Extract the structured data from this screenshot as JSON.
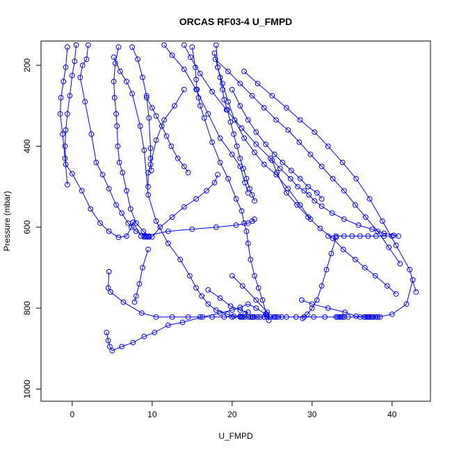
{
  "chart_data": {
    "type": "line",
    "title": "ORCAS RF03-4 U_FMPD",
    "xlabel": "U_FMPD",
    "ylabel": "Pressure (mbar)",
    "xlim": [
      -3.9,
      44.8
    ],
    "ylim": [
      1030,
      140
    ],
    "y_reversed": true,
    "xticks": [
      0,
      10,
      20,
      30,
      40
    ],
    "yticks": [
      200,
      400,
      600,
      800,
      1000
    ],
    "grid": false,
    "legend": "none",
    "series_color": "#0000ff",
    "series": [
      {
        "x": [
          -0.6,
          -0.8,
          -1.1,
          -1.4,
          -1.5,
          -1.2,
          -0.9,
          -0.6
        ],
        "y": [
          155,
          205,
          240,
          280,
          320,
          370,
          430,
          495
        ]
      },
      {
        "x": [
          0.5,
          0.3,
          0.0,
          -0.3,
          -0.6,
          -0.8,
          -0.9,
          -0.8,
          0.0,
          1.2,
          2.3,
          3.5,
          4.6,
          5.8,
          6.8,
          7.4,
          7.6,
          8.6
        ],
        "y": [
          150,
          190,
          225,
          275,
          320,
          360,
          400,
          445,
          468,
          510,
          555,
          590,
          610,
          625,
          622,
          600,
          588,
          622
        ]
      },
      {
        "x": [
          2.0,
          1.8,
          1.3,
          1.0,
          1.6,
          2.4,
          3.0,
          3.8,
          4.6,
          5.5,
          6.2,
          7.0,
          8.0,
          9.2
        ],
        "y": [
          150,
          185,
          200,
          230,
          290,
          370,
          440,
          470,
          505,
          545,
          565,
          590,
          610,
          622
        ]
      },
      {
        "x": [
          5.8,
          5.4,
          5.2,
          5.3,
          5.5,
          5.6,
          5.7,
          5.9,
          6.3,
          6.8,
          7.3,
          8.0,
          8.9,
          9.6
        ],
        "y": [
          155,
          195,
          240,
          280,
          320,
          350,
          400,
          440,
          465,
          510,
          555,
          590,
          610,
          622
        ]
      },
      {
        "x": [
          9.3,
          10.0,
          10.5,
          11.2,
          11.8,
          12.4,
          13.2,
          14.0,
          14.5
        ],
        "y": [
          280,
          305,
          325,
          350,
          375,
          400,
          430,
          450,
          465
        ]
      },
      {
        "x": [
          7.5,
          8.2,
          8.8,
          9.3,
          9.6,
          9.8,
          9.8,
          9.9
        ],
        "y": [
          155,
          185,
          230,
          275,
          330,
          405,
          430,
          460
        ]
      },
      {
        "x": [
          14.0,
          12.8,
          11.5,
          10.5,
          9.8,
          9.5,
          9.5
        ],
        "y": [
          260,
          300,
          335,
          385,
          445,
          465,
          500
        ]
      },
      {
        "x": [
          5.2,
          6.0,
          6.8,
          7.5,
          8.5,
          9.0,
          9.5,
          10.5,
          12.0,
          13.5,
          14.7,
          15.5,
          16.2,
          17.0,
          18.0,
          19.4,
          20.2,
          21.0,
          21.6,
          22.0,
          21.0,
          19.8,
          18.5,
          17.0
        ],
        "y": [
          180,
          215,
          240,
          270,
          350,
          410,
          520,
          585,
          640,
          680,
          720,
          750,
          770,
          790,
          805,
          815,
          820,
          820,
          815,
          810,
          805,
          795,
          775,
          755
        ]
      },
      {
        "x": [
          4.3,
          4.5,
          4.7,
          5.0,
          6.2,
          7.6,
          9.0,
          10.3,
          12.0,
          13.8,
          16.3,
          18.5,
          20.0,
          21.0,
          22.0,
          23.0,
          24.2,
          24.6,
          24.4,
          23.0,
          21.3,
          20.0
        ],
        "y": [
          860,
          880,
          895,
          905,
          895,
          885,
          870,
          860,
          842,
          835,
          822,
          812,
          805,
          798,
          790,
          800,
          815,
          830,
          810,
          780,
          745,
          720
        ]
      },
      {
        "x": [
          9.5,
          8.8,
          8.4,
          8.0,
          7.8
        ],
        "y": [
          655,
          700,
          740,
          770,
          785
        ]
      },
      {
        "x": [
          4.6,
          4.5,
          4.8,
          6.4,
          8.7,
          10.5,
          12.5,
          14.5,
          16.0,
          17.5,
          19.0,
          20.0,
          21.2,
          22.6,
          24.0,
          25.3,
          26.8,
          28.0,
          29.0,
          30.2,
          31.6,
          33.0,
          34.5,
          36.0,
          37.5,
          38.5
        ],
        "y": [
          710,
          750,
          760,
          785,
          812,
          822,
          822,
          822,
          822,
          822,
          822,
          822,
          822,
          822,
          822,
          822,
          822,
          822,
          822,
          822,
          822,
          822,
          822,
          822,
          822,
          822
        ]
      },
      {
        "x": [
          21.0,
          21.3,
          21.6,
          22.0,
          22.3,
          22.5,
          22.8,
          23.2,
          23.5,
          24.0,
          24.4,
          24.8,
          25.2,
          25.5,
          25.8,
          26.2
        ],
        "y": [
          822,
          822,
          822,
          822,
          822,
          822,
          822,
          822,
          822,
          822,
          822,
          822,
          822,
          822,
          822,
          822
        ]
      },
      {
        "x": [
          33.2,
          33.4,
          33.6,
          33.8,
          34.0
        ],
        "y": [
          822,
          822,
          822,
          822,
          822
        ]
      },
      {
        "x": [
          36.5,
          36.7,
          36.9,
          37.1,
          37.3,
          37.6,
          37.9,
          38.2
        ],
        "y": [
          822,
          822,
          822,
          822,
          822,
          822,
          822,
          822
        ]
      },
      {
        "x": [
          11.5,
          12.5,
          14.0,
          15.5,
          17.0,
          18.5,
          20.0,
          21.0,
          21.6,
          22.0
        ],
        "y": [
          150,
          175,
          210,
          260,
          320,
          380,
          420,
          450,
          490,
          515
        ]
      },
      {
        "x": [
          15.0,
          15.4,
          15.5,
          15.6,
          15.8,
          16.0,
          16.5,
          17.5,
          18.5,
          19.5,
          20.5,
          21.2,
          21.5,
          21.8,
          22.0,
          22.3,
          22.8,
          23.3,
          23.8,
          24.3
        ],
        "y": [
          155,
          205,
          235,
          260,
          280,
          300,
          330,
          390,
          440,
          480,
          530,
          560,
          590,
          610,
          640,
          680,
          720,
          750,
          780,
          815
        ]
      },
      {
        "x": [
          18.0,
          18.2,
          18.5,
          18.8,
          19.0,
          19.4,
          19.8,
          20.2,
          20.6,
          21.0,
          21.4,
          21.8,
          22.2,
          22.5,
          22.8
        ],
        "y": [
          150,
          205,
          230,
          260,
          285,
          310,
          340,
          370,
          400,
          430,
          455,
          480,
          505,
          520,
          535
        ]
      },
      {
        "x": [
          17.8,
          18.2,
          18.8,
          19.5,
          20.3,
          21.5,
          22.8,
          24.0,
          25.5,
          27.0,
          28.5,
          29.8
        ],
        "y": [
          170,
          205,
          245,
          290,
          335,
          380,
          415,
          445,
          470,
          505,
          545,
          580
        ]
      },
      {
        "x": [
          25.0,
          25.6,
          26.8,
          28.1,
          29.5,
          31.0,
          32.6,
          33.9,
          35.4,
          36.6,
          37.9,
          39.4,
          40.5
        ],
        "y": [
          435,
          465,
          515,
          545,
          575,
          603,
          628,
          655,
          680,
          700,
          720,
          745,
          765
        ]
      },
      {
        "x": [
          14.0,
          14.8,
          16.0,
          17.5,
          19.3,
          21.2,
          23.0,
          24.8,
          26.0,
          27.3,
          28.2,
          29.0,
          29.6,
          30.3,
          31.2,
          32.5,
          34.0,
          35.8,
          37.5,
          39.0,
          40.2,
          40.8
        ],
        "y": [
          150,
          180,
          220,
          265,
          310,
          355,
          395,
          430,
          455,
          480,
          500,
          510,
          520,
          535,
          548,
          565,
          580,
          595,
          605,
          615,
          620,
          622
        ]
      },
      {
        "x": [
          20.0,
          21.0,
          22.0,
          23.0,
          24.2,
          25.3,
          26.3,
          27.4,
          28.5,
          29.5,
          30.6,
          31.2
        ],
        "y": [
          260,
          300,
          335,
          365,
          395,
          420,
          440,
          460,
          480,
          500,
          515,
          530
        ]
      },
      {
        "x": [
          17.9,
          19.5,
          21.0,
          22.5,
          24.0,
          25.5,
          27.0,
          28.4,
          29.8,
          31.2,
          32.6,
          34.0,
          35.4,
          36.7,
          38.2,
          39.6,
          41.0
        ],
        "y": [
          185,
          215,
          245,
          275,
          305,
          335,
          360,
          390,
          420,
          450,
          480,
          510,
          545,
          575,
          610,
          650,
          690
        ]
      },
      {
        "x": [
          21.5,
          23.2,
          25.0,
          26.8,
          28.5,
          30.3,
          32.0,
          33.8,
          35.5,
          37.2,
          38.8,
          40.5,
          42.2,
          43.0
        ],
        "y": [
          215,
          245,
          275,
          305,
          335,
          365,
          400,
          440,
          480,
          530,
          585,
          645,
          705,
          760
        ]
      },
      {
        "x": [
          42.6,
          41.8,
          40.0,
          38.2,
          37.0,
          35.5,
          34.1,
          32.0,
          30.0,
          28.7
        ],
        "y": [
          730,
          790,
          815,
          822,
          822,
          820,
          810,
          800,
          790,
          780
        ]
      },
      {
        "x": [
          33.0,
          32.4,
          31.8,
          31.2,
          30.6,
          30.0,
          29.4,
          28.8
        ],
        "y": [
          625,
          665,
          705,
          745,
          780,
          800,
          815,
          825
        ]
      },
      {
        "x": [
          9.0,
          9.3,
          9.6,
          10.0,
          11.0,
          12.5,
          14.0,
          15.5,
          16.8,
          17.8,
          18.2
        ],
        "y": [
          624,
          624,
          624,
          624,
          600,
          575,
          550,
          530,
          510,
          490,
          470
        ]
      },
      {
        "x": [
          32.0,
          33.0,
          34.0,
          35.0,
          36.0,
          37.0,
          38.0,
          39.0,
          40.0
        ],
        "y": [
          622,
          622,
          622,
          622,
          622,
          622,
          622,
          622,
          622
        ]
      },
      {
        "x": [
          9.0,
          12.0,
          15.0,
          18.0,
          20.5,
          22.0,
          22.5,
          22.8
        ],
        "y": [
          622,
          610,
          605,
          600,
          595,
          590,
          585,
          580
        ]
      }
    ]
  }
}
